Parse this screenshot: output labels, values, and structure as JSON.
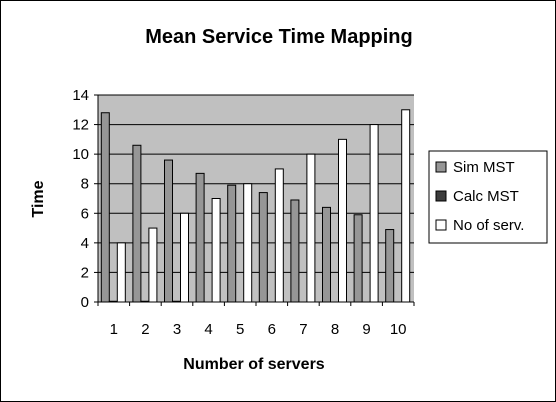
{
  "chart_data": {
    "type": "bar",
    "title": "Mean Service Time Mapping",
    "xlabel": "Number of servers",
    "ylabel": "Time",
    "categories": [
      "1",
      "2",
      "3",
      "4",
      "5",
      "6",
      "7",
      "8",
      "9",
      "10"
    ],
    "series": [
      {
        "name": "Sim MST",
        "color": "#969696",
        "values": [
          12.8,
          10.6,
          9.6,
          8.7,
          7.9,
          7.4,
          6.9,
          6.4,
          5.9,
          4.9
        ]
      },
      {
        "name": "Calc MST",
        "color": "#3c3c3c",
        "values": [
          0.05,
          0.05,
          0.05,
          0,
          0,
          0,
          0,
          0,
          0,
          0
        ]
      },
      {
        "name": "No of serv.",
        "color": "#ffffff",
        "values": [
          4,
          5,
          6,
          7,
          8,
          9,
          10,
          11,
          12,
          13
        ]
      }
    ],
    "ylim": [
      0,
      14
    ],
    "yticks": [
      "0",
      "2",
      "4",
      "6",
      "8",
      "10",
      "12",
      "14"
    ],
    "grid": true,
    "plot_background": "#c0c0c0",
    "legend_position": "right"
  }
}
